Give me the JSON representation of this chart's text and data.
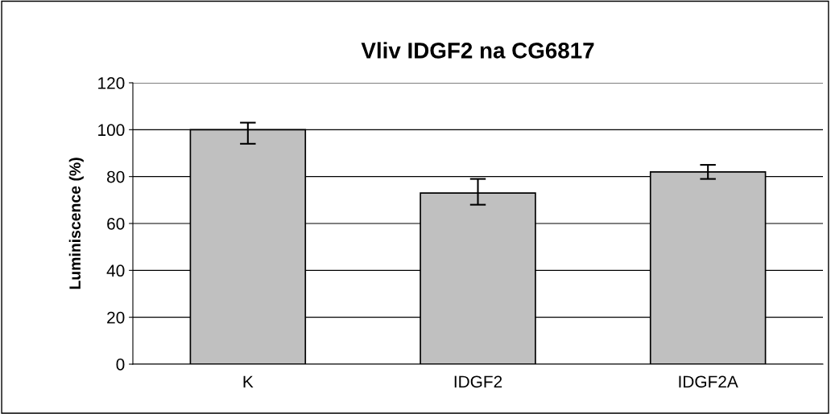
{
  "chart_data": {
    "type": "bar",
    "title": "Vliv IDGF2 na CG6817",
    "ylabel": "Luminiscence (%)",
    "categories": [
      "K",
      "IDGF2",
      "IDGF2A"
    ],
    "values": [
      100,
      73,
      82
    ],
    "errors": [
      [
        94,
        103
      ],
      [
        68,
        79
      ],
      [
        79,
        85
      ]
    ],
    "color": "#c0c0c0",
    "ylim": [
      0,
      120
    ],
    "yticks": [
      0,
      20,
      40,
      60,
      80,
      100,
      120
    ],
    "grid": "y",
    "legend": false
  }
}
